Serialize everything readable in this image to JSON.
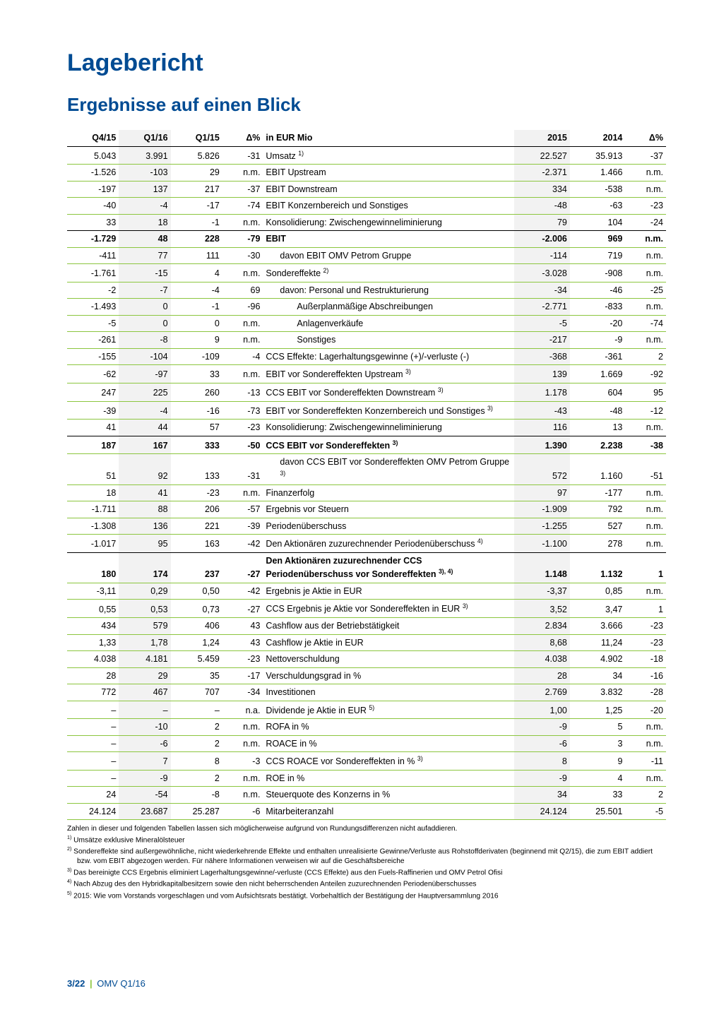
{
  "title": "Lagebericht",
  "subtitle": "Ergebnisse auf einen Blick",
  "footer": {
    "page": "3/22",
    "separator": "|",
    "doc": "OMV Q1/16"
  },
  "cols": {
    "q4_15": "Q4/15",
    "q1_16": "Q1/16",
    "q1_15": "Q1/15",
    "d1": "Δ%",
    "label": "in EUR Mio",
    "y2015": "2015",
    "y2014": "2014",
    "d2": "Δ%"
  },
  "widths": {
    "c0": 70,
    "c1": 70,
    "c2": 70,
    "c3": 55,
    "c4": 340,
    "c5": 75,
    "c6": 75,
    "c7": 55
  },
  "rows": [
    {
      "c": [
        "5.043",
        "3.991",
        "5.826",
        "-31",
        "Umsatz <sup>1)</sup>",
        "22.527",
        "35.913",
        "-37"
      ],
      "border": "green",
      "shade": [
        1,
        5
      ]
    },
    {
      "c": [
        "-1.526",
        "-103",
        "29",
        "n.m.",
        "EBIT Upstream",
        "-2.371",
        "1.466",
        "n.m."
      ],
      "border": "thin",
      "shade": [
        1,
        5
      ]
    },
    {
      "c": [
        "-197",
        "137",
        "217",
        "-37",
        "EBIT Downstream",
        "334",
        "-538",
        "n.m."
      ],
      "border": "thin",
      "shade": [
        1,
        5
      ]
    },
    {
      "c": [
        "-40",
        "-4",
        "-17",
        "-74",
        "EBIT Konzernbereich und Sonstiges",
        "-48",
        "-63",
        "-23"
      ],
      "border": "thin",
      "shade": [
        1,
        5
      ]
    },
    {
      "c": [
        "33",
        "18",
        "-1",
        "n.m.",
        "Konsolidierung: Zwischengewinneliminierung",
        "79",
        "104",
        "-24"
      ],
      "border": "black",
      "shade": [
        1,
        5
      ]
    },
    {
      "c": [
        "-1.729",
        "48",
        "228",
        "-79",
        "EBIT",
        "-2.006",
        "969",
        "n.m."
      ],
      "border": "green",
      "bold": true,
      "shade": [
        1,
        5
      ]
    },
    {
      "c": [
        "-411",
        "77",
        "111",
        "-30",
        "davon EBIT OMV Petrom Gruppe",
        "-114",
        "719",
        "n.m."
      ],
      "border": "green",
      "indent": 1,
      "shade": [
        1,
        5
      ]
    },
    {
      "c": [
        "-1.761",
        "-15",
        "4",
        "n.m.",
        "Sondereffekte <sup>2)</sup>",
        "-3.028",
        "-908",
        "n.m."
      ],
      "border": "thin",
      "shade": [
        1,
        5
      ]
    },
    {
      "c": [
        "-2",
        "-7",
        "-4",
        "69",
        "davon: Personal und Restrukturierung",
        "-34",
        "-46",
        "-25"
      ],
      "border": "thin",
      "indent": 1,
      "shade": [
        1,
        5
      ]
    },
    {
      "c": [
        "-1.493",
        "0",
        "-1",
        "-96",
        "Außerplanmäßige Abschreibungen",
        "-2.771",
        "-833",
        "n.m."
      ],
      "border": "thin",
      "indent": 2,
      "shade": [
        1,
        5
      ]
    },
    {
      "c": [
        "-5",
        "0",
        "0",
        "n.m.",
        "Anlagenverkäufe",
        "-5",
        "-20",
        "-74"
      ],
      "border": "thin",
      "indent": 2,
      "shade": [
        1,
        5
      ]
    },
    {
      "c": [
        "-261",
        "-8",
        "9",
        "n.m.",
        "Sonstiges",
        "-217",
        "-9",
        "n.m."
      ],
      "border": "thin",
      "indent": 2,
      "shade": [
        1,
        5
      ]
    },
    {
      "c": [
        "-155",
        "-104",
        "-109",
        "-4",
        "CCS Effekte: Lagerhaltungsgewinne (+)/-verluste (-)",
        "-368",
        "-361",
        "2"
      ],
      "border": "green",
      "shade": [
        1,
        5
      ]
    },
    {
      "c": [
        "-62",
        "-97",
        "33",
        "n.m.",
        "EBIT vor Sondereffekten Upstream <sup>3)</sup>",
        "139",
        "1.669",
        "-92"
      ],
      "border": "thin",
      "shade": [
        1,
        5
      ]
    },
    {
      "c": [
        "247",
        "225",
        "260",
        "-13",
        "CCS EBIT vor Sondereffekten Downstream <sup>3)</sup>",
        "1.178",
        "604",
        "95"
      ],
      "border": "thin",
      "shade": [
        1,
        5
      ]
    },
    {
      "c": [
        "-39",
        "-4",
        "-16",
        "-73",
        "EBIT vor Sondereffekten Konzernbereich und Sonstiges <sup>3)</sup>",
        "-43",
        "-48",
        "-12"
      ],
      "border": "thin",
      "shade": [
        1,
        5
      ]
    },
    {
      "c": [
        "41",
        "44",
        "57",
        "-23",
        "Konsolidierung: Zwischengewinneliminierung",
        "116",
        "13",
        "n.m."
      ],
      "border": "black",
      "shade": [
        1,
        5
      ]
    },
    {
      "c": [
        "187",
        "167",
        "333",
        "-50",
        "CCS EBIT vor Sondereffekten <sup>3)</sup>",
        "1.390",
        "2.238",
        "-38"
      ],
      "border": "green",
      "bold": true,
      "shade": [
        1,
        5
      ]
    },
    {
      "c": [
        "51",
        "92",
        "133",
        "-31",
        "davon CCS EBIT vor Sondereffekten OMV Petrom Gruppe <sup>3)</sup>",
        "572",
        "1.160",
        "-51"
      ],
      "border": "green",
      "indent": 1,
      "shade": [
        1,
        5
      ]
    },
    {
      "c": [
        "18",
        "41",
        "-23",
        "n.m.",
        "Finanzerfolg",
        "97",
        "-177",
        "n.m."
      ],
      "border": "green",
      "shade": [
        1,
        5
      ]
    },
    {
      "c": [
        "-1.711",
        "88",
        "206",
        "-57",
        "Ergebnis vor Steuern",
        "-1.909",
        "792",
        "n.m."
      ],
      "border": "thin",
      "shade": [
        1,
        5
      ]
    },
    {
      "c": [
        "-1.308",
        "136",
        "221",
        "-39",
        "Periodenüberschuss",
        "-1.255",
        "527",
        "n.m."
      ],
      "border": "thin",
      "shade": [
        1,
        5
      ]
    },
    {
      "c": [
        "-1.017",
        "95",
        "163",
        "-42",
        "Den Aktionären zuzurechnender Periodenüberschuss <sup>4)</sup>",
        "-1.100",
        "278",
        "n.m."
      ],
      "border": "black",
      "shade": [
        1,
        5
      ]
    },
    {
      "c": [
        "180",
        "174",
        "237",
        "-27",
        "Den Aktionären zuzurechnender CCS Periodenüberschuss vor Sondereffekten <sup>3), 4)</sup>",
        "1.148",
        "1.132",
        "1"
      ],
      "border": "green",
      "bold": true,
      "shade": [
        1,
        5
      ]
    },
    {
      "c": [
        "-3,11",
        "0,29",
        "0,50",
        "-42",
        "Ergebnis je Aktie in EUR",
        "-3,37",
        "0,85",
        "n.m."
      ],
      "border": "thin",
      "shade": [
        1,
        5
      ]
    },
    {
      "c": [
        "0,55",
        "0,53",
        "0,73",
        "-27",
        "CCS Ergebnis je Aktie vor Sondereffekten in EUR <sup>3)</sup>",
        "3,52",
        "3,47",
        "1"
      ],
      "border": "green",
      "shade": [
        1,
        5
      ]
    },
    {
      "c": [
        "434",
        "579",
        "406",
        "43",
        "Cashflow aus der Betriebstätigkeit",
        "2.834",
        "3.666",
        "-23"
      ],
      "border": "thin",
      "shade": [
        1,
        5
      ]
    },
    {
      "c": [
        "1,33",
        "1,78",
        "1,24",
        "43",
        "Cashflow je Aktie in EUR",
        "8,68",
        "11,24",
        "-23"
      ],
      "border": "green",
      "shade": [
        1,
        5
      ]
    },
    {
      "c": [
        "4.038",
        "4.181",
        "5.459",
        "-23",
        "Nettoverschuldung",
        "4.038",
        "4.902",
        "-18"
      ],
      "border": "thin",
      "shade": [
        1,
        5
      ]
    },
    {
      "c": [
        "28",
        "29",
        "35",
        "-17",
        "Verschuldungsgrad in %",
        "28",
        "34",
        "-16"
      ],
      "border": "green",
      "shade": [
        1,
        5
      ]
    },
    {
      "c": [
        "772",
        "467",
        "707",
        "-34",
        "Investitionen",
        "2.769",
        "3.832",
        "-28"
      ],
      "border": "green",
      "shade": [
        1,
        5
      ]
    },
    {
      "c": [
        "–",
        "–",
        "–",
        "n.a.",
        "Dividende je Aktie in EUR <sup>5)</sup>",
        "1,00",
        "1,25",
        "-20"
      ],
      "border": "green",
      "shade": [
        1,
        5
      ]
    },
    {
      "c": [
        "–",
        "-10",
        "2",
        "n.m.",
        "ROFA in %",
        "-9",
        "5",
        "n.m."
      ],
      "border": "thin",
      "shade": [
        1,
        5
      ]
    },
    {
      "c": [
        "–",
        "-6",
        "2",
        "n.m.",
        "ROACE in %",
        "-6",
        "3",
        "n.m."
      ],
      "border": "thin",
      "shade": [
        1,
        5
      ]
    },
    {
      "c": [
        "–",
        "7",
        "8",
        "-3",
        "CCS ROACE vor Sondereffekten in % <sup>3)</sup>",
        "8",
        "9",
        "-11"
      ],
      "border": "thin",
      "shade": [
        1,
        5
      ]
    },
    {
      "c": [
        "–",
        "-9",
        "2",
        "n.m.",
        "ROE in %",
        "-9",
        "4",
        "n.m."
      ],
      "border": "green",
      "shade": [
        1,
        5
      ]
    },
    {
      "c": [
        "24",
        "-54",
        "-8",
        "n.m.",
        "Steuerquote des Konzerns in %",
        "34",
        "33",
        "2"
      ],
      "border": "green",
      "shade": [
        1,
        5
      ]
    },
    {
      "c": [
        "24.124",
        "23.687",
        "25.287",
        "-6",
        "Mitarbeiteranzahl",
        "24.124",
        "25.501",
        "-5"
      ],
      "border": "green",
      "shade": [
        1,
        5
      ]
    }
  ],
  "footnotes": [
    "Zahlen in dieser und folgenden Tabellen lassen sich möglicherweise aufgrund von Rundungsdifferenzen nicht aufaddieren.",
    "<sup>1)</sup> Umsätze exklusive Mineralölsteuer",
    "<sup>2)</sup> Sondereffekte sind außergewöhnliche, nicht wiederkehrende Effekte und enthalten unrealisierte Gewinne/Verluste aus Rohstoffderivaten (beginnend mit Q2/15), die zum EBIT addiert bzw. vom EBIT abgezogen werden. Für nähere Informationen verweisen wir auf die Geschäftsbereiche",
    "<sup>3)</sup> Das bereinigte CCS Ergebnis eliminiert Lagerhaltungsgewinne/-verluste (CCS Effekte) aus den Fuels-Raffinerien und OMV Petrol Ofisi",
    "<sup>4)</sup> Nach Abzug des den Hybridkapitalbesitzern sowie den nicht beherrschenden Anteilen zuzurechnenden Periodenüberschusses",
    "<sup>5)</sup> 2015: Wie vom Vorstands vorgeschlagen und vom Aufsichtsrats bestätigt. Vorbehaltlich der Bestätigung der Hauptversammlung 2016"
  ],
  "style": {
    "title_color": "#004b93",
    "accent_color": "#8cc63f",
    "shade_color": "#f2f2f2",
    "text_color": "#000000"
  }
}
